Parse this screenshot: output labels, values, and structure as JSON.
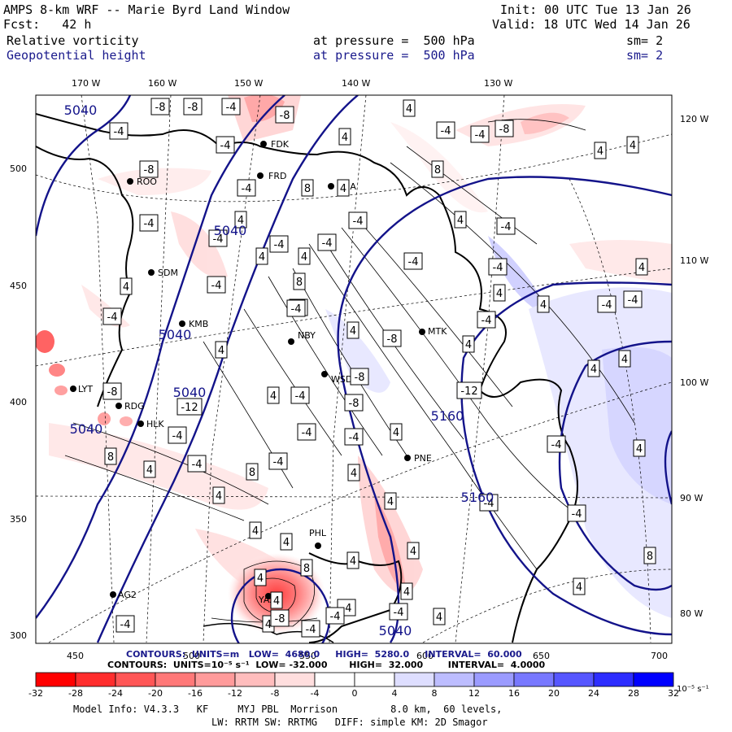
{
  "header": {
    "title": "AMPS 8-km WRF -- Marie Byrd Land Window",
    "init": "Init: 00 UTC Tue 13 Jan 26",
    "fcst": "Fcst:   42 h",
    "valid": "Valid: 18 UTC Wed 14 Jan 26",
    "field1": "Relative vorticity",
    "field1_level": "at pressure =  500 hPa",
    "field1_sm": "sm= 2",
    "field2": "Geopotential height",
    "field2_level": "at pressure =  500 hPa",
    "field2_sm": "sm= 2"
  },
  "axes": {
    "top_lon": [
      "170 W",
      "160 W",
      "150 W",
      "140 W",
      "130 W"
    ],
    "right_lon": [
      "120 W",
      "110 W",
      "100 W",
      "90 W",
      "80 W"
    ],
    "left_y": [
      "500",
      "450",
      "400",
      "350",
      "300"
    ],
    "bottom_x": [
      "450",
      "500",
      "550",
      "600",
      "650",
      "700"
    ]
  },
  "stations": [
    {
      "id": "FDK"
    },
    {
      "id": "FRD"
    },
    {
      "id": "HUA"
    },
    {
      "id": "ROO"
    },
    {
      "id": "SDM"
    },
    {
      "id": "KMB"
    },
    {
      "id": "NBY"
    },
    {
      "id": "MTK"
    },
    {
      "id": "WSD"
    },
    {
      "id": "LYT"
    },
    {
      "id": "RDG"
    },
    {
      "id": "HLK"
    },
    {
      "id": "PNE"
    },
    {
      "id": "PHL"
    },
    {
      "id": "AG2"
    },
    {
      "id": "YAZ"
    }
  ],
  "height_labels": [
    "5040",
    "5040",
    "5040",
    "5040",
    "5040",
    "5160",
    "5160",
    "5040"
  ],
  "vort_labels": [
    "-8",
    "-8",
    "-4",
    "-8",
    "-4",
    "4",
    "-4",
    "4",
    "-4",
    "-4",
    "-8",
    "4",
    "4",
    "-8",
    "8",
    "-4",
    "8",
    "4",
    "-4",
    "-4",
    "4",
    "-4",
    "-4",
    "4",
    "-4",
    "-4",
    "4",
    "4",
    "-4",
    "4",
    "-4",
    "-4",
    "4",
    "8",
    "-4",
    "4",
    "4",
    "-4",
    "-4",
    "-4",
    "-4",
    "4",
    "-8",
    "4",
    "4",
    "-4",
    "4",
    "4",
    "-8",
    "-8",
    "-12",
    "4",
    "-4",
    "-12",
    "-8",
    "-4",
    "-4",
    "-4",
    "4",
    "-4",
    "4",
    "8",
    "4",
    "-4",
    "8",
    "-4",
    "4",
    "4",
    "-4",
    "4",
    "-4",
    "4",
    "4",
    "4",
    "8",
    "4",
    "8",
    "4",
    "4",
    "4",
    "4",
    "-4",
    "4",
    "-4",
    "4",
    "-4",
    "-8",
    "-4",
    "-4"
  ],
  "contours_height": "CONTOURS:  UNITS=m   LOW=  4680.0     HIGH=  5280.0     INTERVAL=  60.000",
  "contours_vort": "CONTOURS:  UNITS=10⁻⁵ s⁻¹  LOW= -32.000       HIGH=  32.000        INTERVAL=  4.0000",
  "colorbar": {
    "ticks": [
      "-32",
      "-28",
      "-24",
      "-20",
      "-16",
      "-12",
      "-8",
      "-4",
      "0",
      "4",
      "8",
      "12",
      "16",
      "20",
      "24",
      "28",
      "32"
    ],
    "unit": "10⁻⁵ s⁻¹",
    "colors": [
      "#ff0000",
      "#ff2d2d",
      "#ff5656",
      "#ff7878",
      "#ff9b9b",
      "#ffbdbd",
      "#ffdede",
      "#ffffff",
      "#ffffff",
      "#dedeff",
      "#bdbdff",
      "#9b9bff",
      "#7878ff",
      "#5656ff",
      "#2d2dff",
      "#0000ff"
    ]
  },
  "footer": {
    "line1": "Model Info: V4.3.3   KF     MYJ PBL  Morrison         8.0 km,  60 levels,",
    "line2": "LW: RRTM SW: RRTMG   DIFF: simple KM: 2D Smagor"
  }
}
